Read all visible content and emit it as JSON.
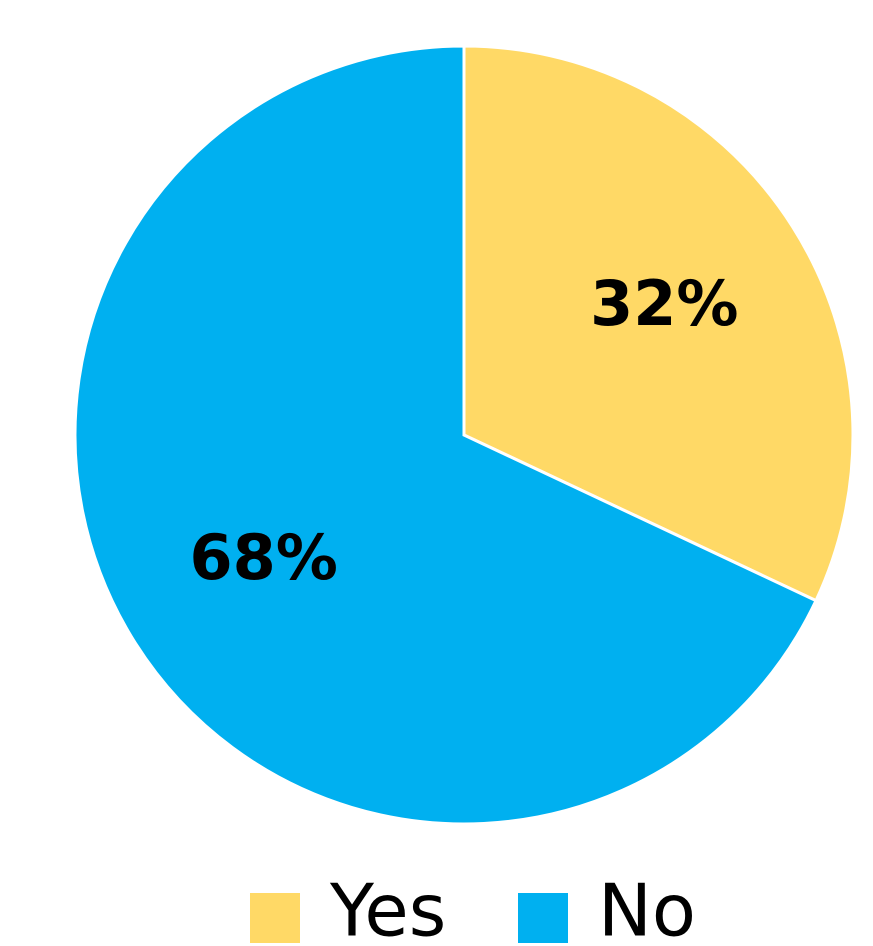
{
  "chart_data": {
    "type": "pie",
    "categories": [
      "Yes",
      "No"
    ],
    "values": [
      32,
      68
    ],
    "value_labels": [
      "32%",
      "68%"
    ],
    "colors": [
      "#FFD966",
      "#00B0F0"
    ],
    "legend": "bottom"
  }
}
